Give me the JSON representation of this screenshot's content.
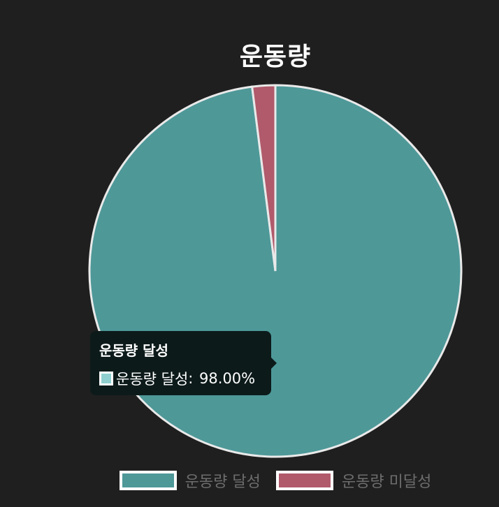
{
  "chart_data": {
    "type": "pie",
    "title": "운동량",
    "categories": [
      "운동량 달성",
      "운동량 미달성"
    ],
    "values": [
      98.0,
      2.0
    ],
    "unit": "%",
    "colors": [
      "#4e9898",
      "#b05a6b"
    ],
    "legend_position": "bottom"
  },
  "legend": {
    "items": [
      {
        "label": "운동량 달성",
        "color": "#4e9898"
      },
      {
        "label": "운동량 미달성",
        "color": "#b05a6b"
      }
    ]
  },
  "tooltip": {
    "title": "운동량 달성",
    "series": "운동량 달성",
    "value": "98.00%",
    "swatch_color": "#8fcfcf"
  }
}
